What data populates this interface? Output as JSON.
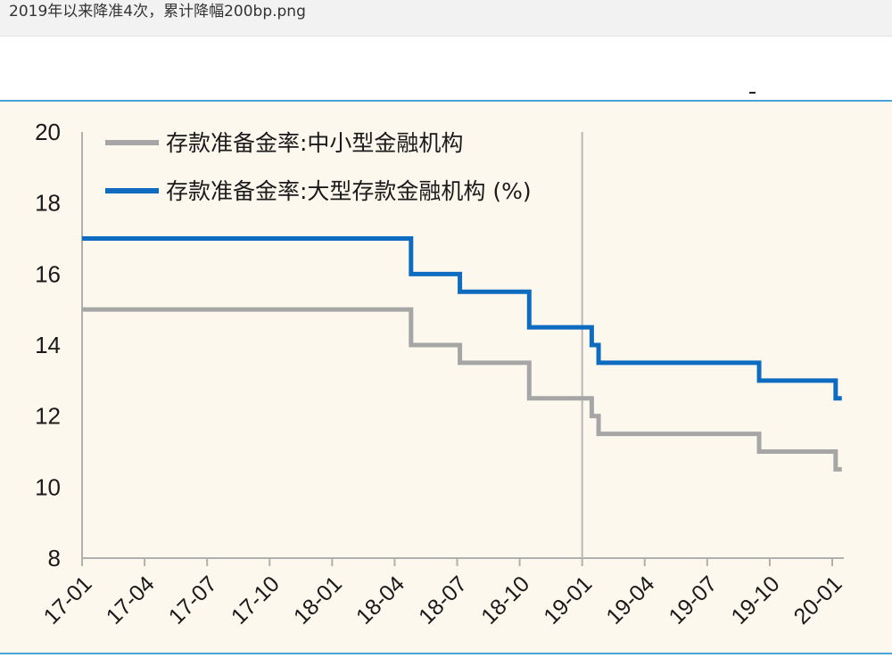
{
  "window": {
    "title": "2019年以来降准4次，累计降幅200bp.png"
  },
  "chart_data": {
    "type": "line",
    "ylim": [
      8,
      20
    ],
    "yticks": [
      "8",
      "10",
      "12",
      "14",
      "16",
      "18",
      "20"
    ],
    "xticks": [
      "17-01",
      "17-04",
      "17-07",
      "17-10",
      "18-01",
      "18-04",
      "18-07",
      "18-10",
      "19-01",
      "19-04",
      "19-07",
      "19-10",
      "20-01"
    ],
    "vertical_marker": "19-01",
    "series": [
      {
        "name": "存款准备金率:中小型金融机构",
        "color": "#a6a6a6",
        "x": [
          "2017-01-01",
          "2018-04-25",
          "2018-07-05",
          "2018-10-15",
          "2019-01-15",
          "2019-01-25",
          "2019-09-16",
          "2020-01-06",
          "2020-01-15"
        ],
        "values": [
          15,
          14,
          13.5,
          12.5,
          12,
          11.5,
          11,
          10.5,
          10.5
        ]
      },
      {
        "name": "存款准备金率:大型存款金融机构 (%)",
        "color": "#0e6cc0",
        "x": [
          "2017-01-01",
          "2018-04-25",
          "2018-07-05",
          "2018-10-15",
          "2019-01-15",
          "2019-01-25",
          "2019-09-16",
          "2020-01-06",
          "2020-01-15"
        ],
        "values": [
          17,
          16,
          15.5,
          14.5,
          14,
          13.5,
          13,
          12.5,
          12.5
        ]
      }
    ]
  }
}
